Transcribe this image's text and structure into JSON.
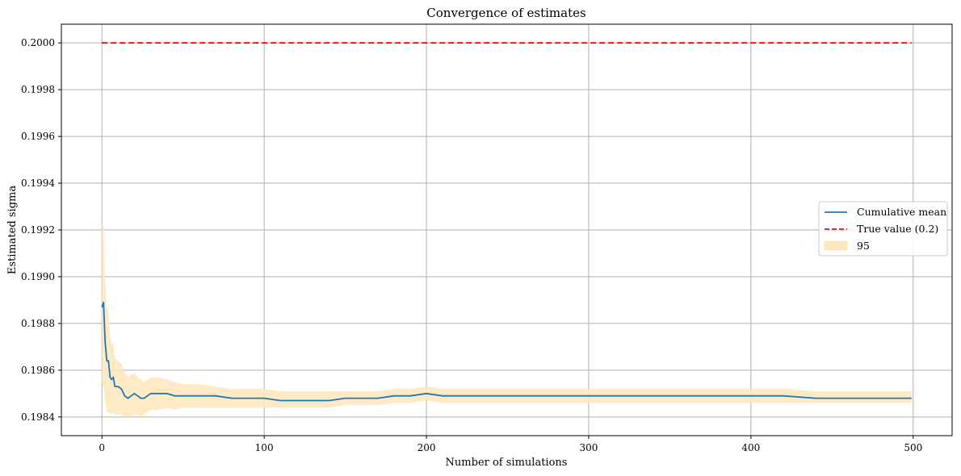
{
  "chart_data": {
    "type": "line",
    "title": "Convergence of estimates",
    "xlabel": "Number of simulations",
    "ylabel": "Estimated sigma",
    "xlim": [
      -25,
      524
    ],
    "ylim": [
      0.19832,
      0.20008
    ],
    "xticks": [
      0,
      100,
      200,
      300,
      400,
      500
    ],
    "yticks": [
      0.1984,
      0.1986,
      0.1988,
      0.199,
      0.1992,
      0.1994,
      0.1996,
      0.1998,
      0.2
    ],
    "ytick_labels": [
      "0.1984",
      "0.1986",
      "0.1988",
      "0.1990",
      "0.1992",
      "0.1994",
      "0.1996",
      "0.1998",
      "0.2000"
    ],
    "grid": true,
    "legend_position": "center-right",
    "series": [
      {
        "name": "Cumulative mean",
        "kind": "line",
        "color": "#1f77b4",
        "x": [
          0,
          1,
          2,
          3,
          4,
          5,
          6,
          7,
          8,
          10,
          12,
          14,
          16,
          18,
          20,
          22,
          24,
          26,
          28,
          30,
          35,
          40,
          45,
          50,
          60,
          70,
          80,
          90,
          100,
          110,
          120,
          130,
          140,
          150,
          160,
          170,
          180,
          190,
          200,
          210,
          220,
          230,
          240,
          250,
          260,
          270,
          280,
          290,
          300,
          320,
          340,
          360,
          380,
          400,
          420,
          440,
          460,
          480,
          499
        ],
        "y": [
          0.19887,
          0.19889,
          0.19872,
          0.19864,
          0.19864,
          0.19857,
          0.19856,
          0.19857,
          0.19853,
          0.19853,
          0.19852,
          0.19849,
          0.19848,
          0.19849,
          0.1985,
          0.19849,
          0.19848,
          0.19848,
          0.19849,
          0.1985,
          0.1985,
          0.1985,
          0.19849,
          0.19849,
          0.19849,
          0.19849,
          0.19848,
          0.19848,
          0.19848,
          0.19847,
          0.19847,
          0.19847,
          0.19847,
          0.19848,
          0.19848,
          0.19848,
          0.19849,
          0.19849,
          0.1985,
          0.19849,
          0.19849,
          0.19849,
          0.19849,
          0.19849,
          0.19849,
          0.19849,
          0.19849,
          0.19849,
          0.19849,
          0.19849,
          0.19849,
          0.19849,
          0.19849,
          0.19849,
          0.19849,
          0.19848,
          0.19848,
          0.19848,
          0.19848
        ]
      },
      {
        "name": "True value (0.2)",
        "kind": "dashed-line",
        "color": "#ff0000",
        "x": [
          0,
          499
        ],
        "y": [
          0.2,
          0.2
        ]
      },
      {
        "name": "95",
        "kind": "band",
        "color": "#ffe8c0",
        "x": [
          0,
          1,
          2,
          3,
          4,
          5,
          6,
          7,
          8,
          10,
          12,
          14,
          16,
          18,
          20,
          22,
          24,
          26,
          28,
          30,
          35,
          40,
          45,
          50,
          60,
          70,
          80,
          90,
          100,
          110,
          120,
          130,
          140,
          150,
          160,
          170,
          180,
          190,
          200,
          210,
          220,
          230,
          240,
          250,
          260,
          270,
          280,
          290,
          300,
          320,
          340,
          360,
          380,
          400,
          420,
          440,
          460,
          480,
          499
        ],
        "lower": [
          0.19855,
          0.19853,
          0.19846,
          0.19842,
          0.19842,
          0.19841,
          0.19841,
          0.19842,
          0.19841,
          0.19841,
          0.19841,
          0.1984,
          0.1984,
          0.1984,
          0.19841,
          0.19841,
          0.1984,
          0.19841,
          0.19842,
          0.19843,
          0.19843,
          0.19844,
          0.19843,
          0.19844,
          0.19844,
          0.19844,
          0.19844,
          0.19844,
          0.19844,
          0.19844,
          0.19844,
          0.19844,
          0.19844,
          0.19845,
          0.19845,
          0.19845,
          0.19846,
          0.19846,
          0.19847,
          0.19846,
          0.19846,
          0.19846,
          0.19846,
          0.19846,
          0.19846,
          0.19846,
          0.19846,
          0.19846,
          0.19846,
          0.19846,
          0.19846,
          0.19846,
          0.19846,
          0.19846,
          0.19846,
          0.19846,
          0.19846,
          0.19846,
          0.19846
        ],
        "upper": [
          0.19923,
          0.19922,
          0.19898,
          0.19886,
          0.19886,
          0.19874,
          0.19871,
          0.19872,
          0.19865,
          0.19864,
          0.19863,
          0.19859,
          0.19857,
          0.19858,
          0.19859,
          0.19857,
          0.19856,
          0.19855,
          0.19856,
          0.19857,
          0.19857,
          0.19856,
          0.19855,
          0.19854,
          0.19854,
          0.19853,
          0.19852,
          0.19852,
          0.19852,
          0.19851,
          0.19851,
          0.19851,
          0.19851,
          0.19851,
          0.19851,
          0.19851,
          0.19852,
          0.19852,
          0.19853,
          0.19852,
          0.19852,
          0.19852,
          0.19852,
          0.19852,
          0.19852,
          0.19852,
          0.19852,
          0.19852,
          0.19852,
          0.19852,
          0.19852,
          0.19852,
          0.19852,
          0.19852,
          0.19852,
          0.19851,
          0.19851,
          0.19851,
          0.19851
        ]
      }
    ]
  }
}
